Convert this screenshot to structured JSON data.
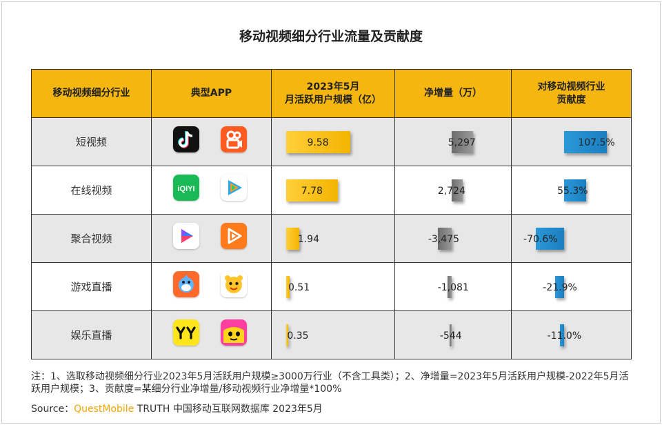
{
  "title": "移动视频细分行业流量及贡献度",
  "headers": {
    "category": "移动视频细分行业",
    "apps": "典型APP",
    "mau_line1": "2023年5月",
    "mau_line2": "月活跃用户规模（亿）",
    "net_increase": "净增量（万）",
    "contrib_line1": "对移动视频行业",
    "contrib_line2": "贡献度"
  },
  "rows": [
    {
      "category": "短视频",
      "apps": [
        "douyin-icon",
        "kuaishou-icon"
      ],
      "mau_label": "9.58",
      "net_label": "5,297",
      "contrib_label": "107.5%"
    },
    {
      "category": "在线视频",
      "apps": [
        "iqiyi-icon",
        "tencent-video-icon"
      ],
      "mau_label": "7.78",
      "net_label": "2,724",
      "contrib_label": "55.3%"
    },
    {
      "category": "聚合视频",
      "apps": [
        "aggregate-video-play-icon",
        "orange-video-play-icon"
      ],
      "mau_label": "1.94",
      "net_label": "-3,475",
      "contrib_label": "-70.6%"
    },
    {
      "category": "游戏直播",
      "apps": [
        "shark-mascot-icon",
        "tiger-mascot-icon"
      ],
      "mau_label": "0.51",
      "net_label": "-1,081",
      "contrib_label": "-21.9%"
    },
    {
      "category": "娱乐直播",
      "apps": [
        "yy-icon",
        "yellow-face-icon"
      ],
      "mau_label": "0.35",
      "net_label": "-544",
      "contrib_label": "-11.0%"
    }
  ],
  "chart_data": [
    {
      "type": "bar",
      "title": "2023年5月 月活跃用户规模（亿）",
      "categories": [
        "短视频",
        "在线视频",
        "聚合视频",
        "游戏直播",
        "娱乐直播"
      ],
      "values": [
        9.58,
        7.78,
        1.94,
        0.51,
        0.35
      ],
      "color": "#f5b70f"
    },
    {
      "type": "bar",
      "title": "净增量（万）",
      "categories": [
        "短视频",
        "在线视频",
        "聚合视频",
        "游戏直播",
        "娱乐直播"
      ],
      "values": [
        5297,
        2724,
        -3475,
        -1081,
        -544
      ],
      "color": "#7a7a7a"
    },
    {
      "type": "bar",
      "title": "对移动视频行业贡献度",
      "categories": [
        "短视频",
        "在线视频",
        "聚合视频",
        "游戏直播",
        "娱乐直播"
      ],
      "values": [
        107.5,
        55.3,
        -70.6,
        -21.9,
        -11.0
      ],
      "unit": "%",
      "color": "#2190d0"
    }
  ],
  "note": "注：1、选取移动视频细分行业2023年5月活跃用户规模≥3000万行业（不含工具类）；2、净增量=2023年5月活跃用户规模-2022年5月活跃用户规模；3、贡献度=某细分行业净增量/移动视频行业净增量*100%",
  "source": {
    "prefix": "Source：",
    "brand": "QuestMobile",
    "suffix": " TRUTH 中国移动互联网数据库 2023年5月"
  }
}
